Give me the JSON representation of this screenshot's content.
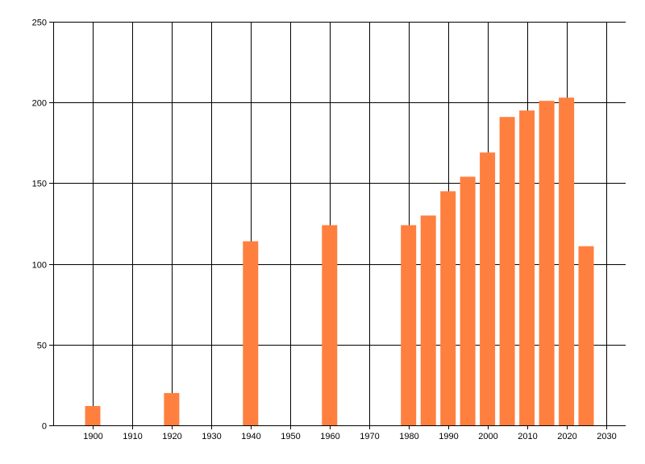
{
  "chart_data": {
    "type": "bar",
    "title": "",
    "xlabel": "",
    "ylabel": "",
    "x": [
      1900,
      1920,
      1940,
      1960,
      1980,
      1985,
      1990,
      1995,
      2000,
      2005,
      2010,
      2015,
      2020,
      2025
    ],
    "values": [
      12,
      20,
      114,
      124,
      124,
      130,
      145,
      154,
      169,
      191,
      195,
      201,
      203,
      111
    ],
    "xlim": [
      1890,
      2035
    ],
    "ylim": [
      0,
      250
    ],
    "x_ticks": [
      "1900",
      "1910",
      "1920",
      "1930",
      "1940",
      "1950",
      "1960",
      "1970",
      "1980",
      "1990",
      "2000",
      "2010",
      "2020",
      "2030"
    ],
    "y_ticks": [
      "0",
      "50",
      "100",
      "150",
      "200",
      "250"
    ],
    "grid": true,
    "legend": "none",
    "bar_color": "#FF7F3F",
    "grid_color": "#000000"
  }
}
